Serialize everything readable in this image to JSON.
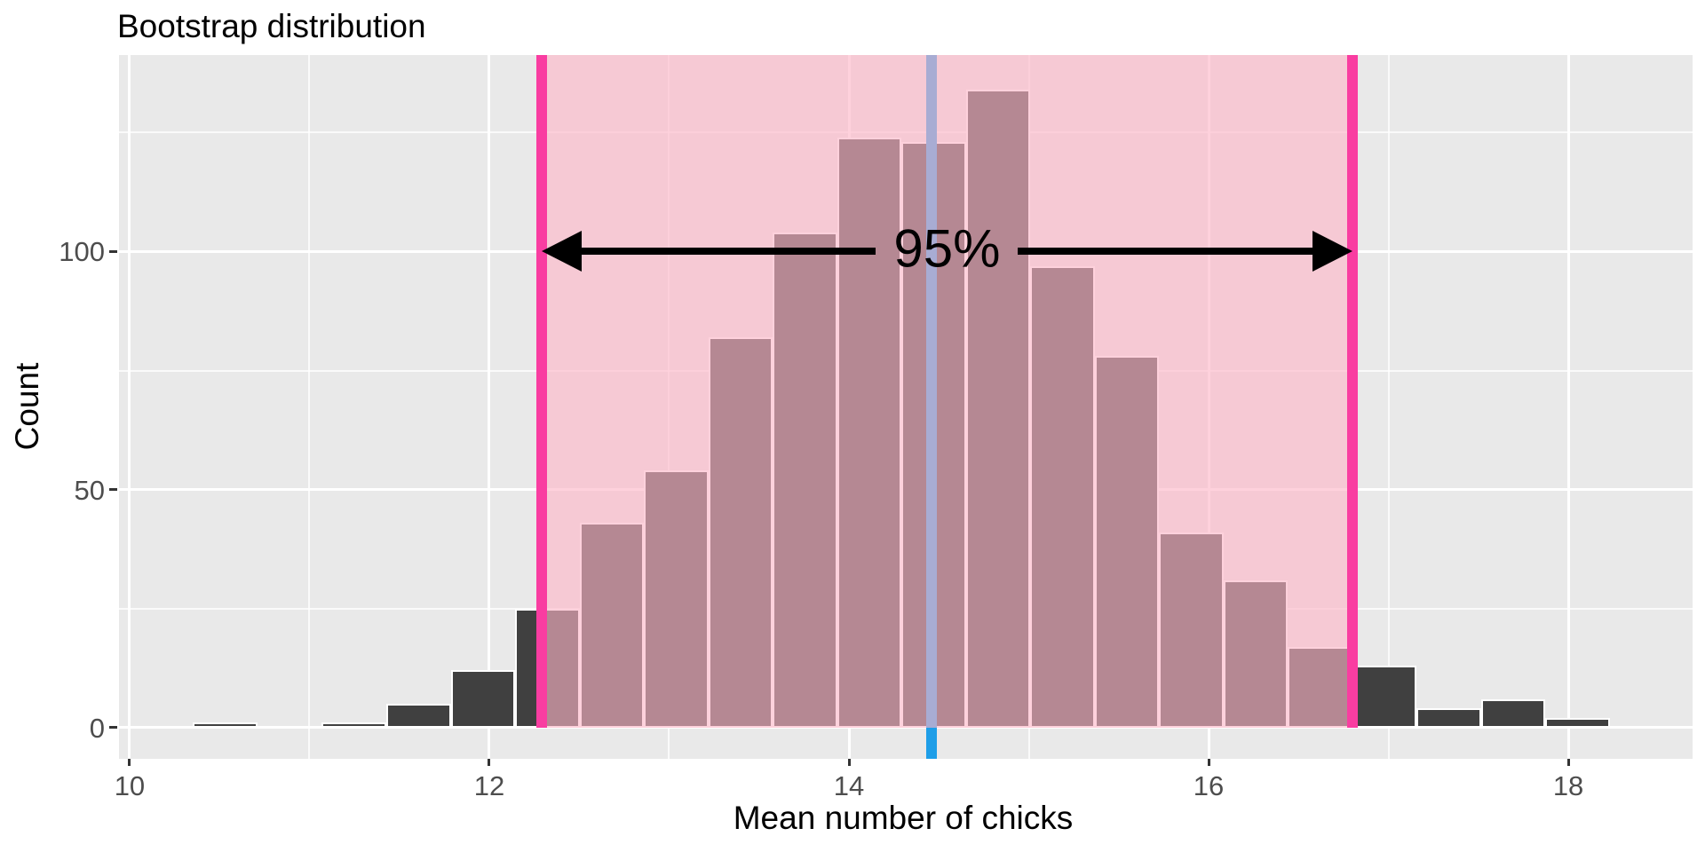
{
  "chart_data": {
    "type": "histogram",
    "title": "Bootstrap distribution",
    "xlabel": "Mean number of chicks",
    "ylabel": "Count",
    "axes": {
      "x_ticks": [
        10,
        12,
        14,
        16,
        18
      ],
      "x_minor_ticks": [
        11,
        13,
        15,
        17
      ],
      "y_ticks": [
        0,
        50,
        100
      ],
      "y_minor_ticks": [
        25,
        75,
        125
      ],
      "x_domain": [
        9.941,
        18.691
      ],
      "y_domain": [
        -6.56,
        141.3
      ],
      "grid": true
    },
    "bins": {
      "start": 10.353,
      "width": 0.3581,
      "counts": [
        1,
        0,
        1,
        5,
        12,
        25,
        43,
        54,
        82,
        104,
        124,
        123,
        134,
        97,
        78,
        41,
        31,
        17,
        13,
        4,
        6,
        2
      ]
    },
    "ci_interval": {
      "lower": 12.29,
      "upper": 16.8,
      "label": "95%"
    },
    "mean_line_x": 14.46,
    "colors": {
      "bar": "#404040",
      "bar_outline": "#FFFFFF",
      "panel_bg": "#E9E9E9",
      "grid_major": "#FFFFFF",
      "grid_minor": "rgba(255,255,255,0.75)",
      "ci_fill": "rgba(253,180,199,0.62)",
      "ci_line": "#F93DA1",
      "mean_line": "#1E9EE8",
      "arrow": "#000000",
      "tick_mark": "#333333",
      "tick_text": "#4D4D4D",
      "text": "#000000"
    }
  }
}
